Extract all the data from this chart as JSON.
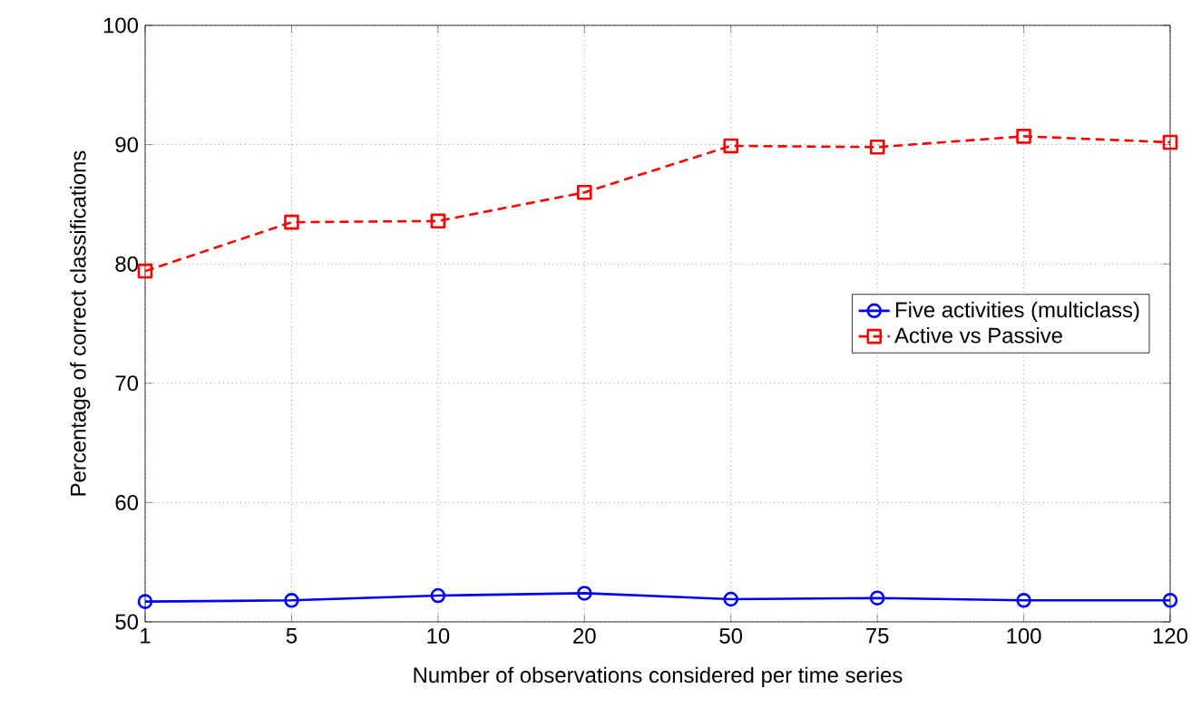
{
  "chart_data": {
    "type": "line",
    "xlabel": "Number of observations considered per time series",
    "ylabel": "Percentage of correct classifications",
    "categories": [
      "1",
      "5",
      "10",
      "20",
      "50",
      "75",
      "100",
      "120"
    ],
    "series": [
      {
        "name": "Five activities (multiclass)",
        "color": "#0000ff",
        "marker": "circle",
        "line_style": "solid",
        "values": [
          51.7,
          51.8,
          52.2,
          52.4,
          51.9,
          52.0,
          51.8,
          51.8
        ]
      },
      {
        "name": "Active vs Passive",
        "color": "#ff0000",
        "marker": "square",
        "line_style": "dashed",
        "values": [
          79.4,
          83.5,
          83.6,
          86.0,
          89.9,
          89.8,
          90.7,
          90.2
        ]
      }
    ],
    "ylim": [
      50,
      100
    ],
    "yticks": [
      50,
      60,
      70,
      80,
      90,
      100
    ],
    "grid": true,
    "legend": "right"
  }
}
